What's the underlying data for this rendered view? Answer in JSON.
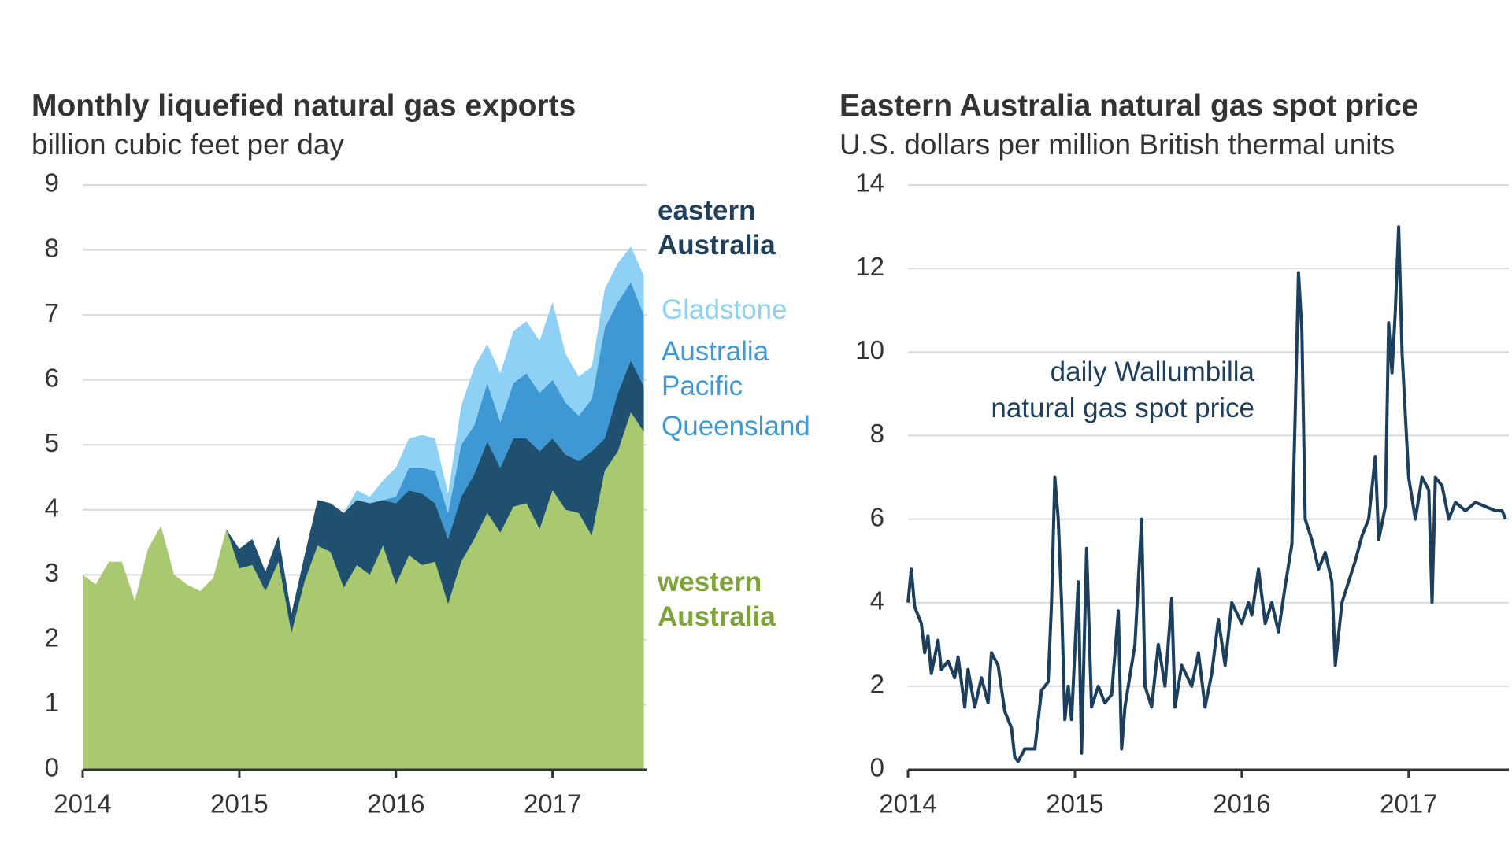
{
  "chart_data": [
    {
      "type": "area",
      "title": "Monthly liquefied natural gas exports",
      "subtitle": "billion cubic feet per day",
      "annotation": "eastern Australia",
      "x": [
        2014.0,
        2014.083,
        2014.167,
        2014.25,
        2014.333,
        2014.417,
        2014.5,
        2014.583,
        2014.667,
        2014.75,
        2014.833,
        2014.917,
        2015.0,
        2015.083,
        2015.167,
        2015.25,
        2015.333,
        2015.417,
        2015.5,
        2015.583,
        2015.667,
        2015.75,
        2015.833,
        2015.917,
        2016.0,
        2016.083,
        2016.167,
        2016.25,
        2016.333,
        2016.417,
        2016.5,
        2016.583,
        2016.667,
        2016.75,
        2016.833,
        2016.917,
        2017.0,
        2017.083,
        2017.167,
        2017.25,
        2017.333,
        2017.417,
        2017.5,
        2017.583
      ],
      "series": [
        {
          "name": "western Australia",
          "color": "#a8c96f",
          "values": [
            3.0,
            2.85,
            3.2,
            3.2,
            2.6,
            3.4,
            3.75,
            3.0,
            2.85,
            2.75,
            2.95,
            3.7,
            3.1,
            3.15,
            2.75,
            3.2,
            2.1,
            2.9,
            3.45,
            3.35,
            2.8,
            3.15,
            3.0,
            3.45,
            2.85,
            3.3,
            3.15,
            3.2,
            2.55,
            3.2,
            3.55,
            3.95,
            3.65,
            4.05,
            4.1,
            3.7,
            4.3,
            4.0,
            3.95,
            3.6,
            4.6,
            4.9,
            5.5,
            5.2
          ]
        },
        {
          "name": "Queensland",
          "color": "#1f5070",
          "values": [
            null,
            null,
            null,
            null,
            null,
            null,
            null,
            null,
            null,
            null,
            null,
            0,
            0.3,
            0.4,
            0.3,
            0.4,
            0.3,
            0.4,
            0.7,
            0.75,
            1.15,
            1.0,
            1.1,
            0.7,
            1.25,
            1.0,
            1.1,
            0.9,
            1.0,
            1.0,
            1.0,
            1.1,
            1.0,
            1.05,
            1.0,
            1.2,
            0.8,
            0.85,
            0.8,
            1.3,
            0.5,
            0.9,
            0.8,
            0.7
          ]
        },
        {
          "name": "Australia Pacific",
          "color": "#3e98d3",
          "values": [
            null,
            null,
            null,
            null,
            null,
            null,
            null,
            null,
            null,
            null,
            null,
            null,
            null,
            null,
            null,
            null,
            null,
            null,
            null,
            null,
            null,
            null,
            null,
            0,
            0.1,
            0.35,
            0.4,
            0.5,
            0.4,
            0.8,
            0.75,
            0.9,
            0.7,
            0.85,
            1.0,
            0.9,
            0.9,
            0.8,
            0.7,
            0.8,
            1.7,
            1.4,
            1.2,
            1.1
          ]
        },
        {
          "name": "Gladstone",
          "color": "#8fd0f5",
          "values": [
            null,
            null,
            null,
            null,
            null,
            null,
            null,
            null,
            null,
            null,
            null,
            null,
            null,
            null,
            null,
            null,
            null,
            null,
            null,
            null,
            0,
            0.15,
            0.1,
            0.3,
            0.45,
            0.45,
            0.5,
            0.5,
            0.3,
            0.6,
            0.9,
            0.6,
            0.75,
            0.8,
            0.8,
            0.8,
            1.2,
            0.75,
            0.6,
            0.5,
            0.6,
            0.6,
            0.55,
            0.6
          ]
        }
      ],
      "xlim": [
        2014,
        2017.6
      ],
      "xticks": [
        2014,
        2015,
        2016,
        2017
      ],
      "ylim": [
        0,
        9
      ],
      "yticks": [
        0,
        1,
        2,
        3,
        4,
        5,
        6,
        7,
        8,
        9
      ],
      "grid": true
    },
    {
      "type": "line",
      "title": "Eastern Australia natural gas spot price",
      "subtitle": "U.S. dollars per million British thermal units",
      "annotation": [
        "daily Wallumbilla",
        "natural gas spot price"
      ],
      "x": [
        2014.0,
        2014.02,
        2014.04,
        2014.08,
        2014.1,
        2014.12,
        2014.14,
        2014.18,
        2014.2,
        2014.24,
        2014.28,
        2014.3,
        2014.34,
        2014.36,
        2014.4,
        2014.44,
        2014.48,
        2014.5,
        2014.54,
        2014.58,
        2014.62,
        2014.64,
        2014.66,
        2014.7,
        2014.76,
        2014.8,
        2014.84,
        2014.86,
        2014.88,
        2014.9,
        2014.92,
        2014.94,
        2014.96,
        2014.98,
        2015.02,
        2015.04,
        2015.07,
        2015.1,
        2015.14,
        2015.18,
        2015.22,
        2015.26,
        2015.28,
        2015.3,
        2015.36,
        2015.4,
        2015.42,
        2015.46,
        2015.5,
        2015.54,
        2015.58,
        2015.6,
        2015.64,
        2015.7,
        2015.74,
        2015.78,
        2015.82,
        2015.86,
        2015.9,
        2015.94,
        2016.0,
        2016.04,
        2016.06,
        2016.1,
        2016.14,
        2016.18,
        2016.22,
        2016.26,
        2016.3,
        2016.32,
        2016.34,
        2016.36,
        2016.38,
        2016.42,
        2016.46,
        2016.5,
        2016.54,
        2016.56,
        2016.6,
        2016.64,
        2016.68,
        2016.72,
        2016.76,
        2016.8,
        2016.82,
        2016.86,
        2016.88,
        2016.9,
        2016.92,
        2016.94,
        2016.96,
        2016.98,
        2017.0,
        2017.04,
        2017.08,
        2017.12,
        2017.14,
        2017.16,
        2017.2,
        2017.24,
        2017.28,
        2017.34,
        2017.4,
        2017.46,
        2017.52,
        2017.56,
        2017.58
      ],
      "series": [
        {
          "name": "daily Wallumbilla natural gas spot price",
          "color": "#1b3f5c",
          "values": [
            4.0,
            4.8,
            3.9,
            3.5,
            2.8,
            3.2,
            2.3,
            3.1,
            2.4,
            2.6,
            2.2,
            2.7,
            1.5,
            2.4,
            1.5,
            2.2,
            1.6,
            2.8,
            2.5,
            1.4,
            1.0,
            0.3,
            0.2,
            0.5,
            0.5,
            1.9,
            2.1,
            4.0,
            7.0,
            6.0,
            4.0,
            1.2,
            2.0,
            1.2,
            4.5,
            0.4,
            5.3,
            1.5,
            2.0,
            1.6,
            1.8,
            3.8,
            0.5,
            1.5,
            3.0,
            6.0,
            2.0,
            1.5,
            3.0,
            2.0,
            4.1,
            1.5,
            2.5,
            2.0,
            2.8,
            1.5,
            2.3,
            3.6,
            2.5,
            4.0,
            3.5,
            4.0,
            3.7,
            4.8,
            3.5,
            4.0,
            3.3,
            4.4,
            5.4,
            8.5,
            11.9,
            10.5,
            6.0,
            5.5,
            4.8,
            5.2,
            4.5,
            2.5,
            4.0,
            4.5,
            5.0,
            5.6,
            6.0,
            7.5,
            5.5,
            6.3,
            10.7,
            9.5,
            11.0,
            13.0,
            10.0,
            8.5,
            7.0,
            6.0,
            7.0,
            6.7,
            4.0,
            7.0,
            6.8,
            6.0,
            6.4,
            6.2,
            6.4,
            6.3,
            6.2,
            6.2,
            6.0
          ]
        }
      ],
      "xlim": [
        2014,
        2017.6
      ],
      "xticks": [
        2014,
        2015,
        2016,
        2017
      ],
      "ylim": [
        0,
        14
      ],
      "yticks": [
        0,
        2,
        4,
        6,
        8,
        10,
        12,
        14
      ],
      "grid": true
    }
  ]
}
